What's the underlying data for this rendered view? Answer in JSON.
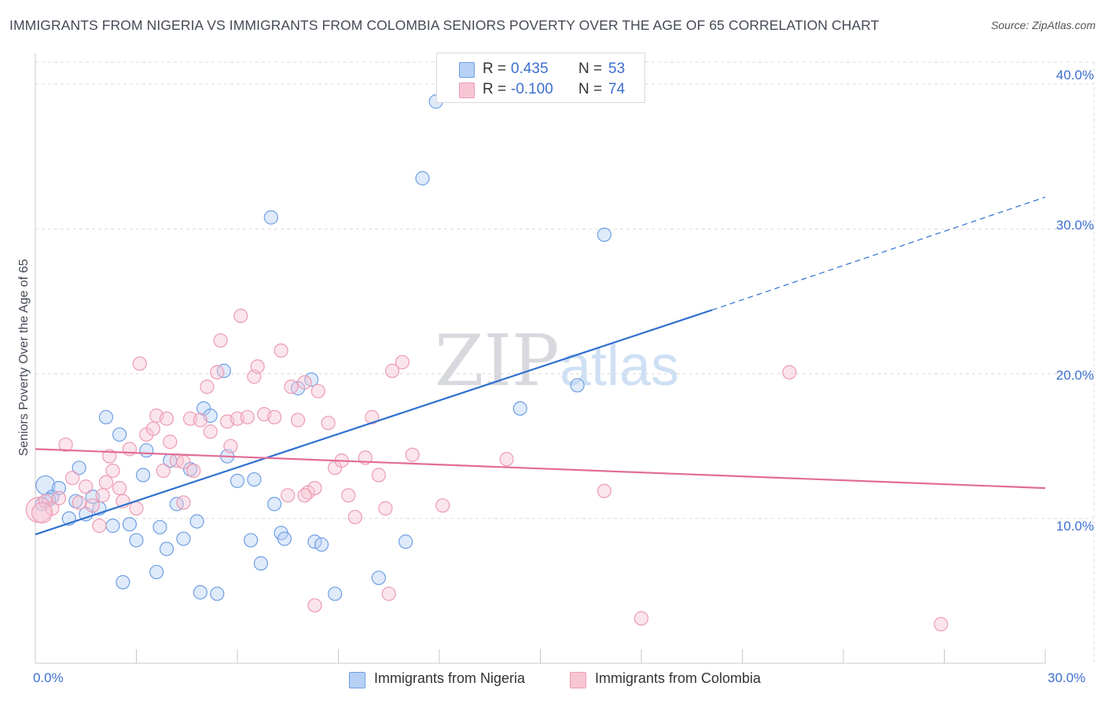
{
  "header": {
    "title": "IMMIGRANTS FROM NIGERIA VS IMMIGRANTS FROM COLOMBIA SENIORS POVERTY OVER THE AGE OF 65 CORRELATION CHART",
    "source": "Source: ZipAtlas.com"
  },
  "watermark": {
    "zip": "ZIP",
    "atlas": "atlas"
  },
  "stats": [
    {
      "r_label": "R =",
      "r_value": "0.435",
      "n_label": "N =",
      "n_value": "53",
      "color": "#a9c6f0"
    },
    {
      "r_label": "R =",
      "r_value": "-0.100",
      "n_label": "N =",
      "n_value": "74",
      "color": "#f4b8cb"
    }
  ],
  "chart_data": {
    "type": "scatter",
    "title": "IMMIGRANTS FROM NIGERIA VS IMMIGRANTS FROM COLOMBIA SENIORS POVERTY OVER THE AGE OF 65 CORRELATION CHART",
    "xlabel": "",
    "ylabel": "Seniors Poverty Over the Age of 65",
    "xlim": [
      0,
      30
    ],
    "ylim": [
      0,
      41.5
    ],
    "x_tick_labels": [
      "0.0%",
      "30.0%"
    ],
    "y_tick_labels": [
      "10.0%",
      "20.0%",
      "30.0%",
      "40.0%"
    ],
    "y_ticks": [
      10,
      20,
      30,
      40
    ],
    "grid": true,
    "legend_position": "bottom-center",
    "series": [
      {
        "name": "Immigrants from Nigeria",
        "color": "#6f9fe4",
        "fill": "#b7d0f4",
        "line_color": "#2f6fd0",
        "trend": {
          "x0": 0,
          "y0": 8.9,
          "x1": 20.1,
          "y1": 24.4,
          "x_dash_end": 30,
          "y_dash_end": 32.2
        },
        "points": [
          [
            0.2,
            11.0
          ],
          [
            0.3,
            12.3
          ],
          [
            0.5,
            11.5
          ],
          [
            0.7,
            12.1
          ],
          [
            1.0,
            10.0
          ],
          [
            1.2,
            11.2
          ],
          [
            1.3,
            13.5
          ],
          [
            1.5,
            10.3
          ],
          [
            1.7,
            11.5
          ],
          [
            1.9,
            10.7
          ],
          [
            2.1,
            17.0
          ],
          [
            2.3,
            9.5
          ],
          [
            2.5,
            15.8
          ],
          [
            2.6,
            5.6
          ],
          [
            2.8,
            9.6
          ],
          [
            3.0,
            8.5
          ],
          [
            3.2,
            13.0
          ],
          [
            3.3,
            14.7
          ],
          [
            3.6,
            6.3
          ],
          [
            3.7,
            9.4
          ],
          [
            3.9,
            7.9
          ],
          [
            4.0,
            14.0
          ],
          [
            4.2,
            11.0
          ],
          [
            4.4,
            8.6
          ],
          [
            4.6,
            13.4
          ],
          [
            4.8,
            9.8
          ],
          [
            4.9,
            4.9
          ],
          [
            5.0,
            17.6
          ],
          [
            5.2,
            17.1
          ],
          [
            5.4,
            4.8
          ],
          [
            5.6,
            20.2
          ],
          [
            5.7,
            14.3
          ],
          [
            6.0,
            12.6
          ],
          [
            6.4,
            8.5
          ],
          [
            6.5,
            12.7
          ],
          [
            6.7,
            6.9
          ],
          [
            7.0,
            30.8
          ],
          [
            7.1,
            11.0
          ],
          [
            7.3,
            9.0
          ],
          [
            7.4,
            8.6
          ],
          [
            7.8,
            19.0
          ],
          [
            8.2,
            19.6
          ],
          [
            8.3,
            8.4
          ],
          [
            8.5,
            8.2
          ],
          [
            8.9,
            4.8
          ],
          [
            10.2,
            5.9
          ],
          [
            11.0,
            8.4
          ],
          [
            11.5,
            33.5
          ],
          [
            11.9,
            38.8
          ],
          [
            14.4,
            17.6
          ],
          [
            16.1,
            19.2
          ],
          [
            16.9,
            29.6
          ],
          [
            0.4,
            11.3
          ]
        ]
      },
      {
        "name": "Immigrants from Colombia",
        "color": "#ec9bb3",
        "fill": "#f7c6d4",
        "line_color": "#e26d95",
        "trend": {
          "x0": 0,
          "y0": 14.8,
          "x1": 30,
          "y1": 12.1
        },
        "points": [
          [
            0.1,
            10.6
          ],
          [
            0.3,
            11.2
          ],
          [
            0.5,
            10.7
          ],
          [
            0.7,
            11.4
          ],
          [
            0.9,
            15.1
          ],
          [
            1.1,
            12.8
          ],
          [
            1.3,
            11.1
          ],
          [
            1.5,
            12.2
          ],
          [
            1.7,
            10.9
          ],
          [
            1.9,
            9.5
          ],
          [
            2.0,
            11.6
          ],
          [
            2.2,
            14.3
          ],
          [
            2.3,
            13.3
          ],
          [
            2.5,
            12.1
          ],
          [
            2.6,
            11.2
          ],
          [
            2.8,
            14.8
          ],
          [
            3.0,
            10.7
          ],
          [
            3.1,
            20.7
          ],
          [
            3.3,
            15.8
          ],
          [
            3.5,
            16.2
          ],
          [
            3.6,
            17.1
          ],
          [
            3.8,
            13.3
          ],
          [
            3.9,
            16.9
          ],
          [
            4.0,
            15.3
          ],
          [
            4.2,
            14.0
          ],
          [
            4.4,
            11.1
          ],
          [
            4.6,
            16.9
          ],
          [
            4.7,
            13.3
          ],
          [
            4.9,
            16.8
          ],
          [
            5.1,
            19.1
          ],
          [
            5.2,
            16.0
          ],
          [
            5.4,
            20.1
          ],
          [
            5.5,
            22.3
          ],
          [
            5.7,
            16.7
          ],
          [
            5.8,
            15.0
          ],
          [
            6.0,
            16.9
          ],
          [
            6.1,
            24.0
          ],
          [
            6.3,
            17.0
          ],
          [
            6.5,
            19.8
          ],
          [
            6.6,
            20.5
          ],
          [
            6.8,
            17.2
          ],
          [
            7.1,
            17.0
          ],
          [
            7.3,
            21.6
          ],
          [
            7.5,
            11.6
          ],
          [
            7.6,
            19.1
          ],
          [
            7.8,
            16.8
          ],
          [
            8.0,
            19.4
          ],
          [
            8.1,
            11.8
          ],
          [
            8.3,
            12.1
          ],
          [
            8.4,
            18.8
          ],
          [
            8.7,
            16.6
          ],
          [
            8.9,
            13.5
          ],
          [
            9.1,
            14.0
          ],
          [
            9.3,
            11.6
          ],
          [
            9.5,
            10.1
          ],
          [
            9.8,
            14.2
          ],
          [
            10.0,
            17.0
          ],
          [
            10.2,
            13.0
          ],
          [
            10.4,
            10.7
          ],
          [
            10.6,
            20.2
          ],
          [
            10.9,
            20.8
          ],
          [
            11.2,
            14.4
          ],
          [
            12.1,
            10.9
          ],
          [
            14.0,
            14.1
          ],
          [
            16.9,
            11.9
          ],
          [
            18.0,
            3.1
          ],
          [
            22.4,
            20.1
          ],
          [
            26.9,
            2.7
          ],
          [
            8.3,
            4.0
          ],
          [
            10.5,
            4.8
          ],
          [
            8.0,
            11.6
          ],
          [
            2.1,
            12.5
          ],
          [
            4.4,
            13.9
          ],
          [
            0.2,
            10.4
          ]
        ]
      }
    ]
  },
  "axes": {
    "y_labels": [
      "40.0%",
      "30.0%",
      "20.0%",
      "10.0%"
    ],
    "x_left": "0.0%",
    "x_right": "30.0%",
    "y_title": "Seniors Poverty Over the Age of 65"
  },
  "legend": {
    "items": [
      {
        "label": "Immigrants from Nigeria",
        "color": "#b7d0f4"
      },
      {
        "label": "Immigrants from Colombia",
        "color": "#f7c6d4"
      }
    ]
  }
}
